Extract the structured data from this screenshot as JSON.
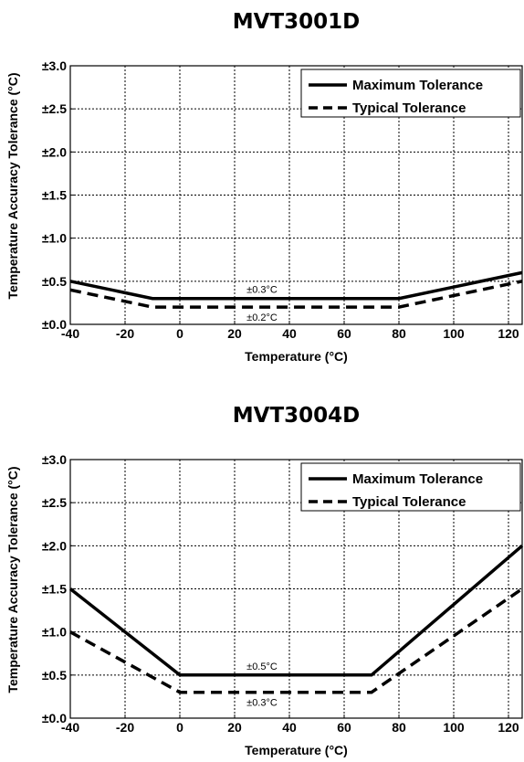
{
  "chart_data": [
    {
      "type": "line",
      "title": "MVT3001D",
      "xlabel": "Temperature (°C)",
      "ylabel": "Temperature Accuracy Tolerance (°C)",
      "xlim": [
        -40,
        125
      ],
      "ylim": [
        0,
        3
      ],
      "xticks": [
        -40,
        -20,
        0,
        20,
        40,
        60,
        80,
        100,
        120
      ],
      "xtick_labels": [
        "-40",
        "-20",
        "0",
        "20",
        "40",
        "60",
        "80",
        "100",
        "120"
      ],
      "yticks": [
        0,
        0.5,
        1,
        1.5,
        2,
        2.5,
        3
      ],
      "ytick_labels": [
        "±0.0",
        "±0.5",
        "±1.0",
        "±1.5",
        "±2.0",
        "±2.5",
        "±3.0"
      ],
      "grid": true,
      "legend_position": "top-right",
      "series": [
        {
          "name": "Maximum Tolerance",
          "style": "solid",
          "x": [
            -40,
            -10,
            80,
            125
          ],
          "y": [
            0.5,
            0.3,
            0.3,
            0.6
          ]
        },
        {
          "name": "Typical Tolerance",
          "style": "dashed",
          "x": [
            -40,
            -10,
            80,
            125
          ],
          "y": [
            0.4,
            0.2,
            0.2,
            0.5
          ]
        }
      ],
      "annotations": [
        {
          "text": "±0.3°C",
          "x": 35,
          "y": 0.3,
          "position": "above"
        },
        {
          "text": "±0.2°C",
          "x": 35,
          "y": 0.2,
          "position": "below"
        }
      ]
    },
    {
      "type": "line",
      "title": "MVT3004D",
      "xlabel": "Temperature (°C)",
      "ylabel": "Temperature Accuracy Tolerance (°C)",
      "xlim": [
        -40,
        125
      ],
      "ylim": [
        0,
        3
      ],
      "xticks": [
        -40,
        -20,
        0,
        20,
        40,
        60,
        80,
        100,
        120
      ],
      "xtick_labels": [
        "-40",
        "-20",
        "0",
        "20",
        "40",
        "60",
        "80",
        "100",
        "120"
      ],
      "yticks": [
        0,
        0.5,
        1,
        1.5,
        2,
        2.5,
        3
      ],
      "ytick_labels": [
        "±0.0",
        "±0.5",
        "±1.0",
        "±1.5",
        "±2.0",
        "±2.5",
        "±3.0"
      ],
      "grid": true,
      "legend_position": "top-right",
      "series": [
        {
          "name": "Maximum Tolerance",
          "style": "solid",
          "x": [
            -40,
            0,
            70,
            125
          ],
          "y": [
            1.5,
            0.5,
            0.5,
            2.0
          ]
        },
        {
          "name": "Typical Tolerance",
          "style": "dashed",
          "x": [
            -40,
            0,
            70,
            125
          ],
          "y": [
            1.0,
            0.3,
            0.3,
            1.5
          ]
        }
      ],
      "annotations": [
        {
          "text": "±0.5°C",
          "x": 35,
          "y": 0.5,
          "position": "above"
        },
        {
          "text": "±0.3°C",
          "x": 35,
          "y": 0.3,
          "position": "below"
        }
      ]
    }
  ]
}
